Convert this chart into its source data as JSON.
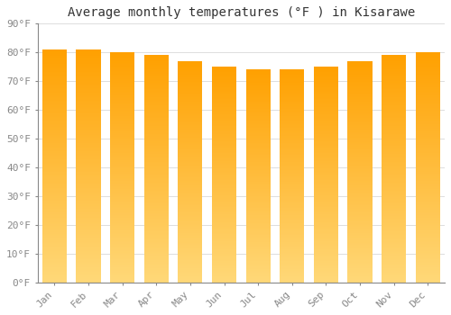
{
  "title": "Average monthly temperatures (°F ) in Kisarawe",
  "months": [
    "Jan",
    "Feb",
    "Mar",
    "Apr",
    "May",
    "Jun",
    "Jul",
    "Aug",
    "Sep",
    "Oct",
    "Nov",
    "Dec"
  ],
  "values": [
    81,
    81,
    80,
    79,
    77,
    75,
    74,
    74,
    75,
    77,
    79,
    80
  ],
  "ylim": [
    0,
    90
  ],
  "yticks": [
    0,
    10,
    20,
    30,
    40,
    50,
    60,
    70,
    80,
    90
  ],
  "ytick_labels": [
    "0°F",
    "10°F",
    "20°F",
    "30°F",
    "40°F",
    "50°F",
    "60°F",
    "70°F",
    "80°F",
    "90°F"
  ],
  "bar_color_top": "#FFA500",
  "bar_color_bottom": "#FFD878",
  "background_color": "#FFFFFF",
  "grid_color": "#DDDDDD",
  "title_fontsize": 10,
  "tick_fontsize": 8,
  "font_family": "monospace"
}
